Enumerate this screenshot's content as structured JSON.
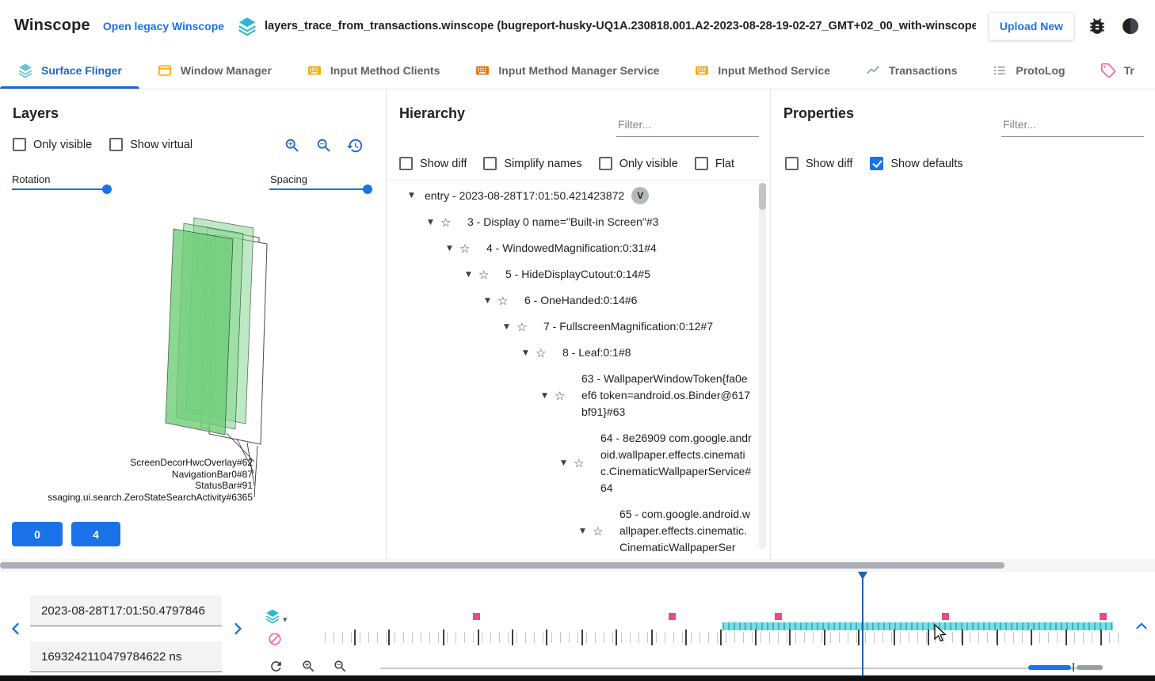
{
  "header": {
    "app_title": "Winscope",
    "legacy_link": "Open legacy Winscope",
    "file_label": "layers_trace_from_transactions.winscope (bugreport-husky-UQ1A.230818.001.A2-2023-08-28-19-02-27_GMT+02_00_with-winscope_REDACTED.zip)",
    "upload_button": "Upload New",
    "file_icon": "layers-icon",
    "right_icons": [
      "bug-report-icon",
      "dark-mode-icon"
    ]
  },
  "tabs": [
    {
      "label": "Surface Flinger",
      "icon": "layers-icon",
      "active": true
    },
    {
      "label": "Window Manager",
      "icon": "window-icon",
      "active": false
    },
    {
      "label": "Input Method Clients",
      "icon": "keyboard-icon",
      "active": false
    },
    {
      "label": "Input Method Manager Service",
      "icon": "keyboard-icon",
      "active": false
    },
    {
      "label": "Input Method Service",
      "icon": "keyboard-icon",
      "active": false
    },
    {
      "label": "Transactions",
      "icon": "line-chart-icon",
      "active": false
    },
    {
      "label": "ProtoLog",
      "icon": "list-icon",
      "active": false
    },
    {
      "label": "Tr",
      "icon": "tag-icon",
      "active": false
    }
  ],
  "layers_panel": {
    "title": "Layers",
    "only_visible": {
      "label": "Only visible",
      "checked": false
    },
    "show_virtual": {
      "label": "Show virtual",
      "checked": false
    },
    "tools": [
      "zoom-in-icon",
      "zoom-out-icon",
      "reset-view-icon"
    ],
    "rotation_label": "Rotation",
    "spacing_label": "Spacing",
    "scene_labels": [
      "ScreenDecorHwcOverlay#62",
      "NavigationBar0#87",
      "StatusBar#91",
      "ssaging.ui.search.ZeroStateSearchActivity#6365"
    ],
    "buttons": [
      {
        "label": "0"
      },
      {
        "label": "4"
      }
    ],
    "layer_fill_color": "#86d993",
    "accent_color": "#1a73e8"
  },
  "hierarchy_panel": {
    "title": "Hierarchy",
    "filter_placeholder": "Filter...",
    "show_diff": {
      "label": "Show diff",
      "checked": false
    },
    "simplify_names": {
      "label": "Simplify names",
      "checked": false
    },
    "only_visible": {
      "label": "Only visible",
      "checked": false
    },
    "flat": {
      "label": "Flat",
      "checked": false
    },
    "tree": [
      {
        "label": "entry - 2023-08-28T17:01:50.421423872",
        "badge": "V"
      },
      {
        "label": "3 - Display 0 name=\"Built-in Screen\"#3"
      },
      {
        "label": "4 - WindowedMagnification:0:31#4"
      },
      {
        "label": "5 - HideDisplayCutout:0:14#5"
      },
      {
        "label": "6 - OneHanded:0:14#6"
      },
      {
        "label": "7 - FullscreenMagnification:0:12#7"
      },
      {
        "label": "8 - Leaf:0:1#8"
      },
      {
        "label": "63 - WallpaperWindowToken{fa0eef6 token=android.os.Binder@617bf91}#63"
      },
      {
        "label": "64 - 8e26909 com.google.android.wallpaper.effects.cinematic.CinematicWallpaperService#64"
      },
      {
        "label": "65 - com.google.android.wallpaper.effects.cinematic.CinematicWallpaperSer"
      }
    ]
  },
  "properties_panel": {
    "title": "Properties",
    "filter_placeholder": "Filter...",
    "show_diff": {
      "label": "Show diff",
      "checked": false
    },
    "show_defaults": {
      "label": "Show defaults",
      "checked": true
    }
  },
  "timeline": {
    "timestamp_human": "2023-08-28T17:01:50.4797846",
    "timestamp_ns": "1693242110479784622 ns",
    "pink_markers": [
      0.19,
      0.436,
      0.569,
      0.779,
      0.977
    ],
    "cyan_range": {
      "start": 0.4995,
      "end": 0.99
    },
    "cursor_position": 0.6756,
    "major_ticks": [
      0.037,
      0.08,
      0.148,
      0.192,
      0.235,
      0.278,
      0.322,
      0.365,
      0.41,
      0.453,
      0.497,
      0.54,
      0.583,
      0.627,
      0.67,
      0.714,
      0.757,
      0.8,
      0.844,
      0.887,
      0.93,
      0.974
    ],
    "colors": {
      "pink": "#e84b8a",
      "cyan": "#69d4dd",
      "cursor": "#1565c0"
    }
  }
}
